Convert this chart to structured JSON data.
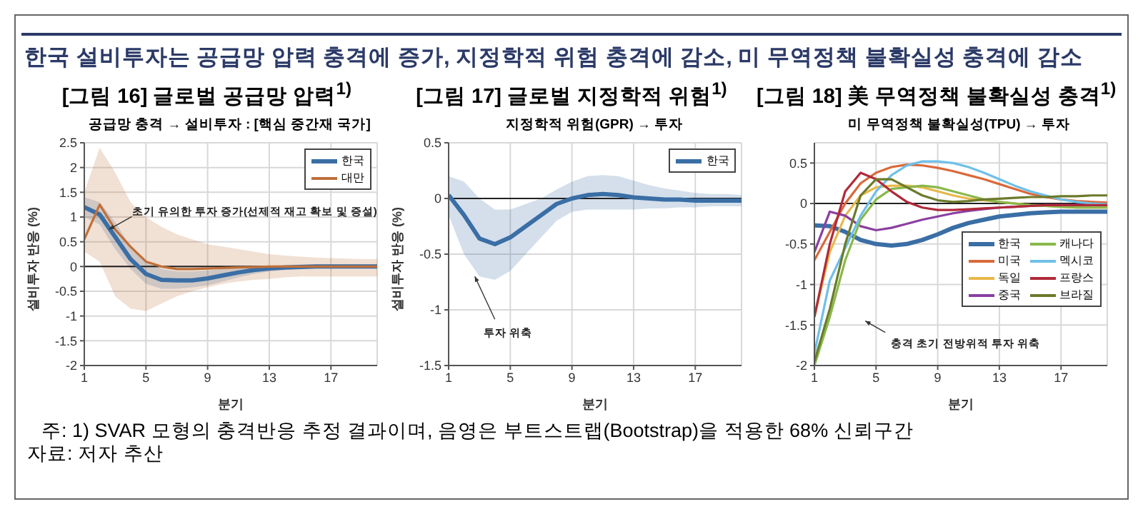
{
  "chart_data": [
    {
      "type": "line",
      "title": "[그림 16] 글로벌 공급망 압력$^{1)}$",
      "subtitle": "공급망 충격 → 설비투자 : [핵심 중간재 국가]",
      "xlabel": "분기",
      "ylabel": "설비투자 반응 (%)",
      "annotations": [
        "한국 설비투자는 공급망 압력 충격에 증가, 지정학적 위험 충격에 감소, 미 무역정책 불확실성 충격에 감소",
        {
          "text": "초기 유의한 투자 증가(선제적 재고 확보 및 증설)",
          "x": 2.6,
          "y": 0.75
        }
      ],
      "x": [
        1,
        2,
        3,
        4,
        5,
        6,
        7,
        8,
        9,
        10,
        11,
        12,
        13,
        14,
        15,
        16,
        17,
        18,
        19,
        20
      ],
      "series": [
        {
          "name": "한국",
          "color": "#3a6ea5",
          "values": [
            1.2,
            1.05,
            0.6,
            0.15,
            -0.15,
            -0.27,
            -0.28,
            -0.28,
            -0.24,
            -0.18,
            -0.12,
            -0.07,
            -0.04,
            -0.02,
            -0.01,
            0,
            0,
            0,
            0,
            0
          ],
          "lower": [
            1.0,
            0.85,
            0.35,
            -0.05,
            -0.35,
            -0.45,
            -0.45,
            -0.42,
            -0.38,
            -0.3,
            -0.22,
            -0.15,
            -0.1,
            -0.07,
            -0.05,
            -0.04,
            -0.03,
            -0.03,
            -0.03,
            -0.03
          ],
          "upper": [
            1.4,
            1.3,
            0.9,
            0.4,
            0.1,
            -0.05,
            -0.1,
            -0.1,
            -0.08,
            -0.05,
            -0.02,
            0,
            0.02,
            0.03,
            0.04,
            0.04,
            0.04,
            0.04,
            0.04,
            0.04
          ]
        },
        {
          "name": "대만",
          "color": "#c0703a",
          "values": [
            0.55,
            1.25,
            0.75,
            0.4,
            0.1,
            0,
            -0.05,
            -0.05,
            -0.04,
            -0.03,
            -0.02,
            -0.01,
            0,
            0,
            0,
            0,
            0,
            0,
            0,
            0
          ],
          "lower": [
            0.3,
            0.1,
            -0.6,
            -0.85,
            -0.9,
            -0.75,
            -0.6,
            -0.5,
            -0.42,
            -0.35,
            -0.3,
            -0.27,
            -0.25,
            -0.22,
            -0.2,
            -0.2,
            -0.2,
            -0.2,
            -0.2,
            -0.2
          ],
          "upper": [
            1.5,
            2.4,
            1.9,
            1.3,
            1.0,
            0.8,
            0.65,
            0.55,
            0.45,
            0.4,
            0.35,
            0.3,
            0.25,
            0.22,
            0.2,
            0.18,
            0.17,
            0.16,
            0.15,
            0.15
          ]
        }
      ],
      "xlim": [
        1,
        20
      ],
      "xticks": [
        1,
        5,
        9,
        13,
        17
      ],
      "ylim": [
        -2,
        2.5
      ],
      "yticks": [
        -2,
        -1.5,
        -1,
        -0.5,
        0,
        0.5,
        1,
        1.5,
        2,
        2.5
      ],
      "grid": true,
      "legend": "top right",
      "ref_lines": [
        {
          "axis": "y",
          "value": 0,
          "color": "#222222"
        }
      ]
    },
    {
      "type": "line",
      "title": "[그림 17] 글로벌 지정학적 위험$^{1)}$",
      "subtitle": "지정학적 위험(GPR) → 투자",
      "xlabel": "분기",
      "ylabel": "설비투자 반응 (%)",
      "annotations": [
        {
          "text": "투자 위축",
          "x": 2.7,
          "y": -0.7
        }
      ],
      "x": [
        1,
        2,
        3,
        4,
        5,
        6,
        7,
        8,
        9,
        10,
        11,
        12,
        13,
        14,
        15,
        16,
        17,
        18,
        19,
        20
      ],
      "series": [
        {
          "name": "한국",
          "color": "#3a6ea5",
          "values": [
            0.03,
            -0.15,
            -0.36,
            -0.41,
            -0.35,
            -0.25,
            -0.15,
            -0.05,
            0,
            0.03,
            0.04,
            0.03,
            0.01,
            0,
            -0.01,
            -0.01,
            -0.02,
            -0.02,
            -0.02,
            -0.02
          ],
          "lower": [
            -0.15,
            -0.5,
            -0.7,
            -0.73,
            -0.65,
            -0.5,
            -0.35,
            -0.2,
            -0.12,
            -0.1,
            -0.1,
            -0.1,
            -0.1,
            -0.09,
            -0.09,
            -0.08,
            -0.08,
            -0.07,
            -0.07,
            -0.07
          ],
          "upper": [
            0.2,
            0.15,
            0,
            -0.1,
            -0.1,
            -0.05,
            0,
            0.08,
            0.15,
            0.2,
            0.21,
            0.2,
            0.16,
            0.12,
            0.09,
            0.07,
            0.05,
            0.04,
            0.04,
            0.03
          ]
        }
      ],
      "xlim": [
        1,
        20
      ],
      "xticks": [
        1,
        5,
        9,
        13,
        17
      ],
      "ylim": [
        -1.5,
        0.5
      ],
      "yticks": [
        -1.5,
        -1,
        -0.5,
        0,
        0.5
      ],
      "grid": true,
      "legend": "top right",
      "ref_lines": [
        {
          "axis": "y",
          "value": 0,
          "color": "#222222"
        }
      ]
    },
    {
      "type": "line",
      "title": "[그림 18] 美 무역정책 불확실성 충격$^{1)}$",
      "subtitle": "미 무역정책 불확실성(TPU) → 투자",
      "xlabel": "분기",
      "annotations": [
        {
          "text": "충격 초기 전방위적 투자 위축",
          "x": 4.3,
          "y": -1.45
        },
        "주: 1) SVAR 모형의 충격반응 추정 결과이며, 음영은 부트스트랩(Bootstrap)을 적용한 68% 신뢰구간",
        "자료: 저자 추산"
      ],
      "x": [
        1,
        2,
        3,
        4,
        5,
        6,
        7,
        8,
        9,
        10,
        11,
        12,
        13,
        14,
        15,
        16,
        17,
        18,
        19,
        20
      ],
      "series": [
        {
          "name": "한국",
          "color": "#3a6ea5",
          "values": [
            -0.27,
            -0.28,
            -0.35,
            -0.45,
            -0.5,
            -0.52,
            -0.5,
            -0.45,
            -0.38,
            -0.3,
            -0.24,
            -0.2,
            -0.16,
            -0.14,
            -0.12,
            -0.11,
            -0.1,
            -0.1,
            -0.1,
            -0.1
          ]
        },
        {
          "name": "미국",
          "color": "#d9693a",
          "values": [
            -0.7,
            -0.35,
            0,
            0.25,
            0.38,
            0.45,
            0.48,
            0.47,
            0.44,
            0.4,
            0.35,
            0.3,
            0.24,
            0.18,
            0.12,
            0.08,
            0.05,
            0.03,
            0.02,
            0.01
          ]
        },
        {
          "name": "독일",
          "color": "#e8b84a",
          "values": [
            -1.4,
            -0.6,
            -0.15,
            0.1,
            0.2,
            0.22,
            0.22,
            0.2,
            0.15,
            0.1,
            0.06,
            0.04,
            0.02,
            0,
            -0.02,
            -0.03,
            -0.04,
            -0.05,
            -0.05,
            -0.05
          ]
        },
        {
          "name": "중국",
          "color": "#8a3fa0",
          "values": [
            -0.6,
            -0.1,
            -0.15,
            -0.28,
            -0.33,
            -0.3,
            -0.25,
            -0.2,
            -0.16,
            -0.12,
            -0.09,
            -0.07,
            -0.05,
            -0.04,
            -0.03,
            -0.02,
            -0.02,
            -0.02,
            -0.02,
            -0.02
          ]
        },
        {
          "name": "캐나다",
          "color": "#8ab84a",
          "values": [
            -2,
            -1.4,
            -0.7,
            -0.2,
            0.05,
            0.18,
            0.2,
            0.22,
            0.2,
            0.15,
            0.1,
            0.05,
            0.02,
            0,
            -0.02,
            -0.03,
            -0.04,
            -0.05,
            -0.05,
            -0.05
          ]
        },
        {
          "name": "멕시코",
          "color": "#6ec0e8",
          "values": [
            -1.85,
            -0.95,
            -0.55,
            -0.15,
            0.15,
            0.35,
            0.47,
            0.52,
            0.52,
            0.5,
            0.45,
            0.38,
            0.3,
            0.22,
            0.15,
            0.1,
            0.05,
            0.02,
            0,
            -0.01
          ]
        },
        {
          "name": "프랑스",
          "color": "#b02a3a",
          "values": [
            -1.4,
            -0.5,
            0.15,
            0.38,
            0.3,
            0.15,
            0.02,
            -0.05,
            -0.08,
            -0.08,
            -0.07,
            -0.06,
            -0.05,
            -0.04,
            -0.03,
            -0.02,
            -0.02,
            -0.02,
            -0.02,
            -0.02
          ]
        },
        {
          "name": "브라질",
          "color": "#6b7a2a",
          "values": [
            -1.95,
            -1.3,
            -0.5,
            0.1,
            0.3,
            0.3,
            0.2,
            0.1,
            0.04,
            0.02,
            0.03,
            0.05,
            0.06,
            0.07,
            0.08,
            0.08,
            0.09,
            0.09,
            0.1,
            0.1
          ]
        }
      ],
      "xlim": [
        1,
        20
      ],
      "xticks": [
        1,
        5,
        9,
        13,
        17
      ],
      "ylim": [
        -2,
        0.75
      ],
      "yticks": [
        -2,
        -1.5,
        -1,
        -0.5,
        0,
        0.5
      ],
      "grid": true,
      "legend": "right",
      "ref_lines": [
        {
          "axis": "y",
          "value": 0,
          "color": "#222222"
        }
      ]
    }
  ]
}
